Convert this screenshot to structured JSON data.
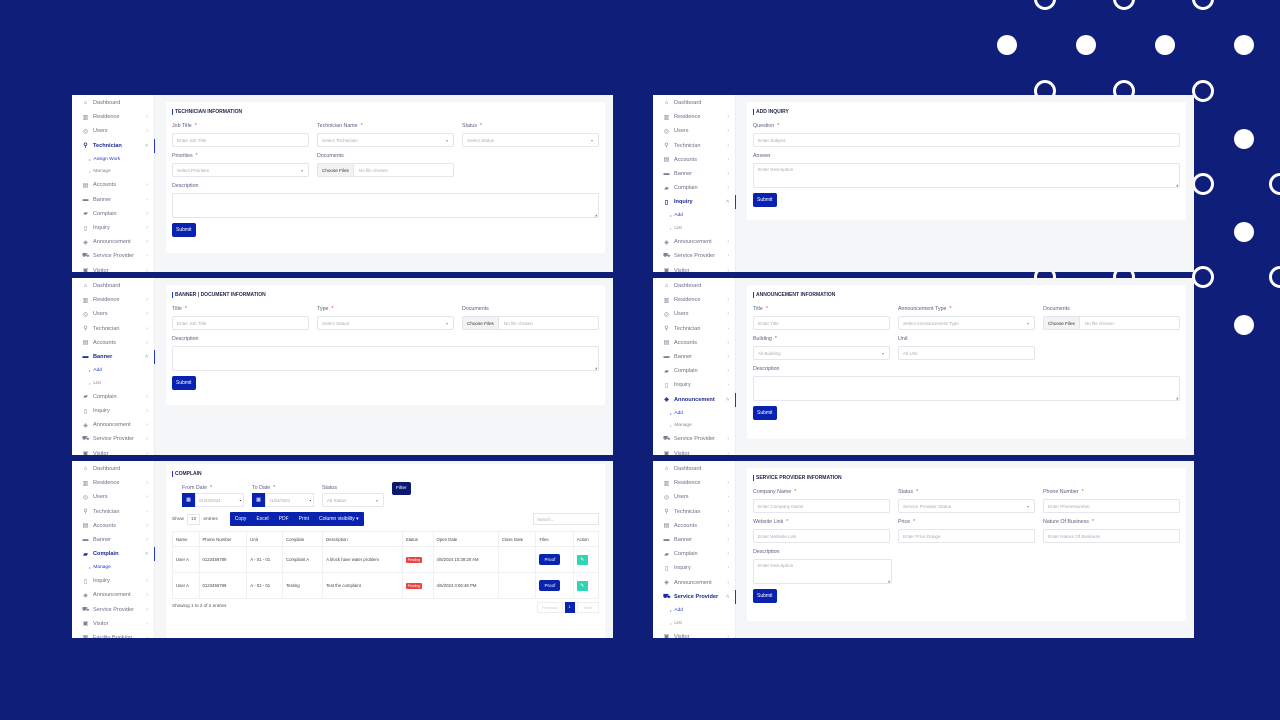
{
  "colors": {
    "background": "#0f1e78",
    "primary": "#0a22b0",
    "accent_bar": "#2436c8",
    "pending": "#e84545",
    "edit": "#2fd4b0"
  },
  "panels": {
    "technician": {
      "sidebar": [
        {
          "label": "Dashboard",
          "icon": "home"
        },
        {
          "label": "Residence",
          "icon": "building",
          "arrow": "›"
        },
        {
          "label": "Users",
          "icon": "user",
          "arrow": "›"
        },
        {
          "label": "Technician",
          "icon": "wrench",
          "arrow": "˄",
          "open": true,
          "sub": [
            {
              "label": "Assign Work",
              "active": true
            },
            {
              "label": "Manage"
            }
          ]
        },
        {
          "label": "Accounts",
          "icon": "bank",
          "arrow": "›"
        },
        {
          "label": "Banner",
          "icon": "banner",
          "arrow": "›"
        },
        {
          "label": "Complain",
          "icon": "flag",
          "arrow": "›"
        },
        {
          "label": "Inquiry",
          "icon": "file",
          "arrow": "›"
        },
        {
          "label": "Announcement",
          "icon": "shield",
          "arrow": "›"
        },
        {
          "label": "Service Provider",
          "icon": "cart",
          "arrow": "›"
        },
        {
          "label": "Visitor",
          "icon": "id",
          "arrow": "›"
        }
      ],
      "title": "Technician Information",
      "fields": [
        {
          "label": "Job Title",
          "required": true,
          "type": "text",
          "placeholder": "Enter Job Title"
        },
        {
          "label": "Technician Name",
          "required": true,
          "type": "select",
          "placeholder": "Select Technician"
        },
        {
          "label": "Status",
          "required": true,
          "type": "select",
          "placeholder": "Select Status"
        },
        {
          "label": "Priorities",
          "required": true,
          "type": "select",
          "placeholder": "Select Priorities"
        },
        {
          "label": "Documents",
          "type": "file",
          "button": "Choose Files",
          "placeholder": "No file chosen"
        }
      ],
      "description": {
        "label": "Description",
        "placeholder": ""
      },
      "submit": "Submit"
    },
    "inquiry": {
      "sidebar": [
        {
          "label": "Dashboard",
          "icon": "home"
        },
        {
          "label": "Residence",
          "icon": "building",
          "arrow": "›"
        },
        {
          "label": "Users",
          "icon": "user",
          "arrow": "›"
        },
        {
          "label": "Technician",
          "icon": "wrench",
          "arrow": "›"
        },
        {
          "label": "Accounts",
          "icon": "bank",
          "arrow": "›"
        },
        {
          "label": "Banner",
          "icon": "banner",
          "arrow": "›"
        },
        {
          "label": "Complain",
          "icon": "flag",
          "arrow": "›"
        },
        {
          "label": "Inquiry",
          "icon": "file",
          "arrow": "˄",
          "open": true,
          "sub": [
            {
              "label": "Add",
              "active": true
            },
            {
              "label": "List"
            }
          ]
        },
        {
          "label": "Announcement",
          "icon": "shield",
          "arrow": "›"
        },
        {
          "label": "Service Provider",
          "icon": "cart",
          "arrow": "›"
        },
        {
          "label": "Visitor",
          "icon": "id",
          "arrow": "›"
        }
      ],
      "title": "Add Inquiry",
      "fields": [
        {
          "label": "Question",
          "required": true,
          "type": "text",
          "placeholder": "Enter Subject"
        }
      ],
      "description": {
        "label": "Answer",
        "placeholder": "Enter Description"
      },
      "submit": "Submit"
    },
    "banner": {
      "sidebar": [
        {
          "label": "Dashboard",
          "icon": "home"
        },
        {
          "label": "Residence",
          "icon": "building",
          "arrow": "›"
        },
        {
          "label": "Users",
          "icon": "user",
          "arrow": "›"
        },
        {
          "label": "Technician",
          "icon": "wrench",
          "arrow": "›"
        },
        {
          "label": "Accounts",
          "icon": "bank",
          "arrow": "›"
        },
        {
          "label": "Banner",
          "icon": "banner",
          "arrow": "˄",
          "open": true,
          "sub": [
            {
              "label": "Add",
              "active": true
            },
            {
              "label": "List"
            }
          ]
        },
        {
          "label": "Complain",
          "icon": "flag",
          "arrow": "›"
        },
        {
          "label": "Inquiry",
          "icon": "file",
          "arrow": "›"
        },
        {
          "label": "Announcement",
          "icon": "shield",
          "arrow": "›"
        },
        {
          "label": "Service Provider",
          "icon": "cart",
          "arrow": "›"
        },
        {
          "label": "Visitor",
          "icon": "id",
          "arrow": "›"
        }
      ],
      "title": "Banner | Document Information",
      "fields": [
        {
          "label": "Title",
          "required": true,
          "type": "text",
          "placeholder": "Enter Job Title"
        },
        {
          "label": "Type",
          "required": true,
          "type": "select",
          "placeholder": "Select Status"
        },
        {
          "label": "Documents",
          "type": "file",
          "button": "Choose Files",
          "placeholder": "No file chosen"
        }
      ],
      "description": {
        "label": "Description",
        "placeholder": ""
      },
      "submit": "Submit"
    },
    "announcement": {
      "sidebar": [
        {
          "label": "Dashboard",
          "icon": "home"
        },
        {
          "label": "Residence",
          "icon": "building",
          "arrow": "›"
        },
        {
          "label": "Users",
          "icon": "user",
          "arrow": "›"
        },
        {
          "label": "Technician",
          "icon": "wrench",
          "arrow": "›"
        },
        {
          "label": "Accounts",
          "icon": "bank",
          "arrow": "›"
        },
        {
          "label": "Banner",
          "icon": "banner",
          "arrow": "›"
        },
        {
          "label": "Complain",
          "icon": "flag",
          "arrow": "›"
        },
        {
          "label": "Inquiry",
          "icon": "file",
          "arrow": "›"
        },
        {
          "label": "Announcement",
          "icon": "shield",
          "arrow": "˄",
          "open": true,
          "sub": [
            {
              "label": "Add",
              "active": true
            },
            {
              "label": "Manage"
            }
          ]
        },
        {
          "label": "Service Provider",
          "icon": "cart",
          "arrow": "›"
        },
        {
          "label": "Visitor",
          "icon": "id",
          "arrow": "›"
        }
      ],
      "title": "Announcement Information",
      "fields": [
        {
          "label": "Title",
          "required": true,
          "type": "text",
          "placeholder": "Enter Title"
        },
        {
          "label": "Announcement Type",
          "required": true,
          "type": "select",
          "placeholder": "Select Announcement Type"
        },
        {
          "label": "Documents",
          "type": "file",
          "button": "Choose Files",
          "placeholder": "No file chosen"
        },
        {
          "label": "Building",
          "required": true,
          "type": "select",
          "placeholder": "All Building"
        },
        {
          "label": "Unit",
          "type": "text",
          "placeholder": "All Unit"
        }
      ],
      "description": {
        "label": "Description",
        "placeholder": ""
      },
      "submit": "Submit"
    },
    "complain": {
      "sidebar": [
        {
          "label": "Dashboard",
          "icon": "home"
        },
        {
          "label": "Residence",
          "icon": "building",
          "arrow": "›"
        },
        {
          "label": "Users",
          "icon": "user",
          "arrow": "›"
        },
        {
          "label": "Technician",
          "icon": "wrench",
          "arrow": "›"
        },
        {
          "label": "Accounts",
          "icon": "bank",
          "arrow": "›"
        },
        {
          "label": "Banner",
          "icon": "banner",
          "arrow": "›"
        },
        {
          "label": "Complain",
          "icon": "flag",
          "arrow": "˄",
          "open": true,
          "sub": [
            {
              "label": "Manage",
              "active": true
            }
          ]
        },
        {
          "label": "Inquiry",
          "icon": "file",
          "arrow": "›"
        },
        {
          "label": "Announcement",
          "icon": "shield",
          "arrow": "›"
        },
        {
          "label": "Service Provider",
          "icon": "cart",
          "arrow": "›"
        },
        {
          "label": "Visitor",
          "icon": "id",
          "arrow": "›"
        },
        {
          "label": "Facility Booking",
          "icon": "calendar",
          "arrow": "›"
        }
      ],
      "title": "Complain",
      "filters": {
        "from_label": "From Date",
        "from_value": "01/04/2024",
        "to_label": "To Date",
        "to_value": "11/04/2024",
        "status_label": "Status",
        "status_value": "All Status",
        "filter_button": "Filter"
      },
      "show_label": "Show",
      "page_length": "10",
      "entries_label": "entries",
      "export_buttons": [
        "Copy",
        "Excel",
        "PDF",
        "Print",
        "Column visibility ▾"
      ],
      "search_placeholder": "Search...",
      "columns": [
        "Name",
        "Phone Number",
        "Unit",
        "Complain",
        "Description",
        "Status",
        "Open Date",
        "Close Date",
        "Files",
        "Action"
      ],
      "rows": [
        {
          "name": "User A",
          "phone": "0123456789",
          "unit": "A - 01 - 01",
          "complain": "Complaint A",
          "description": "A block have water problem",
          "status": "Pending",
          "open_date": "4/5/2024 10:39:20 AM",
          "close_date": "",
          "files": "Proof"
        },
        {
          "name": "User A",
          "phone": "0123456789",
          "unit": "A - 01 - 01",
          "complain": "Testing",
          "description": "Test the complaint",
          "status": "Pending",
          "open_date": "4/5/2024 3:06:48 PM",
          "close_date": "",
          "files": "Proof"
        }
      ],
      "info": "Showing 1 to 2 of 2 entries",
      "pagination": {
        "previous": "Previous",
        "current": "1",
        "next": "Next"
      }
    },
    "service_provider": {
      "sidebar": [
        {
          "label": "Dashboard",
          "icon": "home"
        },
        {
          "label": "Residence",
          "icon": "building",
          "arrow": "›"
        },
        {
          "label": "Users",
          "icon": "user",
          "arrow": "›"
        },
        {
          "label": "Technician",
          "icon": "wrench",
          "arrow": "›"
        },
        {
          "label": "Accounts",
          "icon": "bank",
          "arrow": "›"
        },
        {
          "label": "Banner",
          "icon": "banner",
          "arrow": "›"
        },
        {
          "label": "Complain",
          "icon": "flag",
          "arrow": "›"
        },
        {
          "label": "Inquiry",
          "icon": "file",
          "arrow": "›"
        },
        {
          "label": "Announcement",
          "icon": "shield",
          "arrow": "›"
        },
        {
          "label": "Service Provider",
          "icon": "cart",
          "arrow": "˄",
          "open": true,
          "sub": [
            {
              "label": "Add",
              "active": true
            },
            {
              "label": "List"
            }
          ]
        },
        {
          "label": "Visitor",
          "icon": "id",
          "arrow": "›"
        }
      ],
      "title": "Service Provider Information",
      "fields": [
        {
          "label": "Company Name",
          "required": true,
          "type": "text",
          "placeholder": "Enter Company Name"
        },
        {
          "label": "Status",
          "required": true,
          "type": "select",
          "placeholder": "Service Provider Status"
        },
        {
          "label": "Phone Number",
          "required": true,
          "type": "text",
          "placeholder": "Enter PhoneNumber"
        },
        {
          "label": "Website Link",
          "required": true,
          "type": "text",
          "placeholder": "Enter Website Link"
        },
        {
          "label": "Price",
          "required": true,
          "type": "text",
          "placeholder": "Enter Price Range"
        },
        {
          "label": "Nature Of Business",
          "required": true,
          "type": "text",
          "placeholder": "Enter Nature Of Business"
        }
      ],
      "description": {
        "label": "Description",
        "placeholder": "Enter Description"
      },
      "submit": "Submit"
    }
  }
}
